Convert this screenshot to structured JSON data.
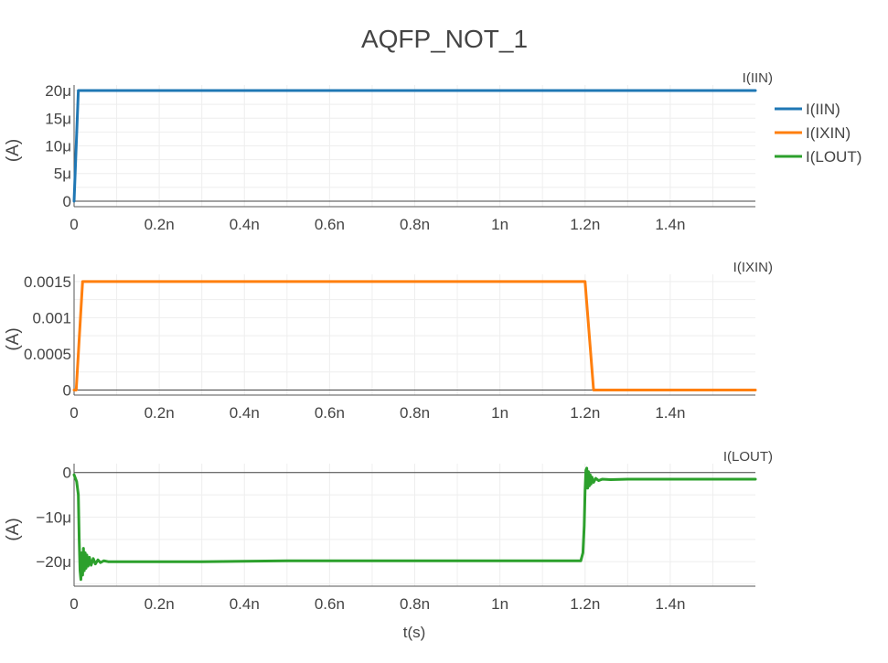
{
  "figure": {
    "title": "AQFP_NOT_1",
    "xlabel": "t(s)"
  },
  "legend": {
    "placement": "right",
    "items": [
      {
        "label": "I(IIN)",
        "color": "#1f77b4"
      },
      {
        "label": "I(IXIN)",
        "color": "#ff7f0e"
      },
      {
        "label": "I(LOUT)",
        "color": "#2ca02c"
      }
    ]
  },
  "chart_data": [
    {
      "type": "line",
      "title": "I(IIN)",
      "xlabel": "",
      "ylabel": "(A)",
      "xlim": [
        0,
        1.6e-09
      ],
      "ylim": [
        -1e-06,
        2.1e-05
      ],
      "grid": true,
      "x_ticks": [
        {
          "value": 0,
          "label": "0"
        },
        {
          "value": 2e-10,
          "label": "0.2n"
        },
        {
          "value": 4e-10,
          "label": "0.4n"
        },
        {
          "value": 6e-10,
          "label": "0.6n"
        },
        {
          "value": 8e-10,
          "label": "0.8n"
        },
        {
          "value": 1e-09,
          "label": "1n"
        },
        {
          "value": 1.2e-09,
          "label": "1.2n"
        },
        {
          "value": 1.4e-09,
          "label": "1.4n"
        }
      ],
      "y_ticks": [
        {
          "value": 0,
          "label": "0"
        },
        {
          "value": 5e-06,
          "label": "5μ"
        },
        {
          "value": 1e-05,
          "label": "10μ"
        },
        {
          "value": 1.5e-05,
          "label": "15μ"
        },
        {
          "value": 2e-05,
          "label": "20μ"
        }
      ],
      "series": [
        {
          "name": "I(IIN)",
          "color": "#1f77b4",
          "x": [
            0,
            1e-11,
            1.6e-09
          ],
          "y": [
            0,
            2e-05,
            2e-05
          ]
        }
      ]
    },
    {
      "type": "line",
      "title": "I(IXIN)",
      "xlabel": "",
      "ylabel": "(A)",
      "xlim": [
        0,
        1.6e-09
      ],
      "ylim": [
        -7e-05,
        0.0016
      ],
      "grid": true,
      "x_ticks": [
        {
          "value": 0,
          "label": "0"
        },
        {
          "value": 2e-10,
          "label": "0.2n"
        },
        {
          "value": 4e-10,
          "label": "0.4n"
        },
        {
          "value": 6e-10,
          "label": "0.6n"
        },
        {
          "value": 8e-10,
          "label": "0.8n"
        },
        {
          "value": 1e-09,
          "label": "1n"
        },
        {
          "value": 1.2e-09,
          "label": "1.2n"
        },
        {
          "value": 1.4e-09,
          "label": "1.4n"
        }
      ],
      "y_ticks": [
        {
          "value": 0,
          "label": "0"
        },
        {
          "value": 0.0005,
          "label": "0.0005"
        },
        {
          "value": 0.001,
          "label": "0.001"
        },
        {
          "value": 0.0015,
          "label": "0.0015"
        }
      ],
      "series": [
        {
          "name": "I(IXIN)",
          "color": "#ff7f0e",
          "x": [
            0,
            5e-12,
            2e-11,
            1.2e-09,
            1.22e-09,
            1.6e-09
          ],
          "y": [
            0,
            0,
            0.0015,
            0.0015,
            0,
            0
          ]
        }
      ]
    },
    {
      "type": "line",
      "title": "I(LOUT)",
      "xlabel": "t(s)",
      "ylabel": "(A)",
      "xlim": [
        0,
        1.6e-09
      ],
      "ylim": [
        -2.55e-05,
        2e-06
      ],
      "grid": true,
      "x_ticks": [
        {
          "value": 0,
          "label": "0"
        },
        {
          "value": 2e-10,
          "label": "0.2n"
        },
        {
          "value": 4e-10,
          "label": "0.4n"
        },
        {
          "value": 6e-10,
          "label": "0.6n"
        },
        {
          "value": 8e-10,
          "label": "0.8n"
        },
        {
          "value": 1e-09,
          "label": "1n"
        },
        {
          "value": 1.2e-09,
          "label": "1.2n"
        },
        {
          "value": 1.4e-09,
          "label": "1.4n"
        }
      ],
      "y_ticks": [
        {
          "value": 0,
          "label": "0"
        },
        {
          "value": -1e-05,
          "label": "−10μ"
        },
        {
          "value": -2e-05,
          "label": "−20μ"
        }
      ],
      "series": [
        {
          "name": "I(LOUT)",
          "color": "#2ca02c",
          "x": [
            0,
            2e-12,
            6e-12,
            1e-11,
            1.2e-11,
            1.4e-11,
            1.6e-11,
            1.8e-11,
            2e-11,
            2.2e-11,
            2.4e-11,
            2.6e-11,
            2.8e-11,
            3e-11,
            3.3e-11,
            3.6e-11,
            4e-11,
            4.5e-11,
            5e-11,
            5.6e-11,
            6.2e-11,
            7e-11,
            8e-11,
            1e-10,
            1.5e-10,
            3e-10,
            5e-10,
            8e-10,
            1e-09,
            1.19e-09,
            1.195e-09,
            1.198e-09,
            1.2e-09,
            1.202e-09,
            1.204e-09,
            1.206e-09,
            1.208e-09,
            1.21e-09,
            1.212e-09,
            1.214e-09,
            1.216e-09,
            1.22e-09,
            1.225e-09,
            1.232e-09,
            1.24e-09,
            1.26e-09,
            1.3e-09,
            1.4e-09,
            1.6e-09
          ],
          "y": [
            -5e-07,
            -1e-06,
            -2e-06,
            -5e-06,
            -1.5e-05,
            -2.2e-05,
            -2.4e-05,
            -1.8e-05,
            -2.3e-05,
            -1.7e-05,
            -2.2e-05,
            -1.8e-05,
            -2.15e-05,
            -1.85e-05,
            -2.1e-05,
            -1.9e-05,
            -2.08e-05,
            -1.93e-05,
            -2.05e-05,
            -1.96e-05,
            -2.02e-05,
            -1.98e-05,
            -2e-05,
            -2e-05,
            -2e-05,
            -2e-05,
            -1.98e-05,
            -1.98e-05,
            -1.98e-05,
            -1.98e-05,
            -1.8e-05,
            -1.2e-05,
            -4e-06,
            5e-07,
            1e-06,
            -3.5e-06,
            2e-07,
            -3e-06,
            -5e-07,
            -2.6e-06,
            -1e-06,
            -2.2e-06,
            -1.3e-06,
            -1.8e-06,
            -1.5e-06,
            -1.6e-06,
            -1.5e-06,
            -1.5e-06,
            -1.5e-06
          ]
        }
      ]
    }
  ]
}
